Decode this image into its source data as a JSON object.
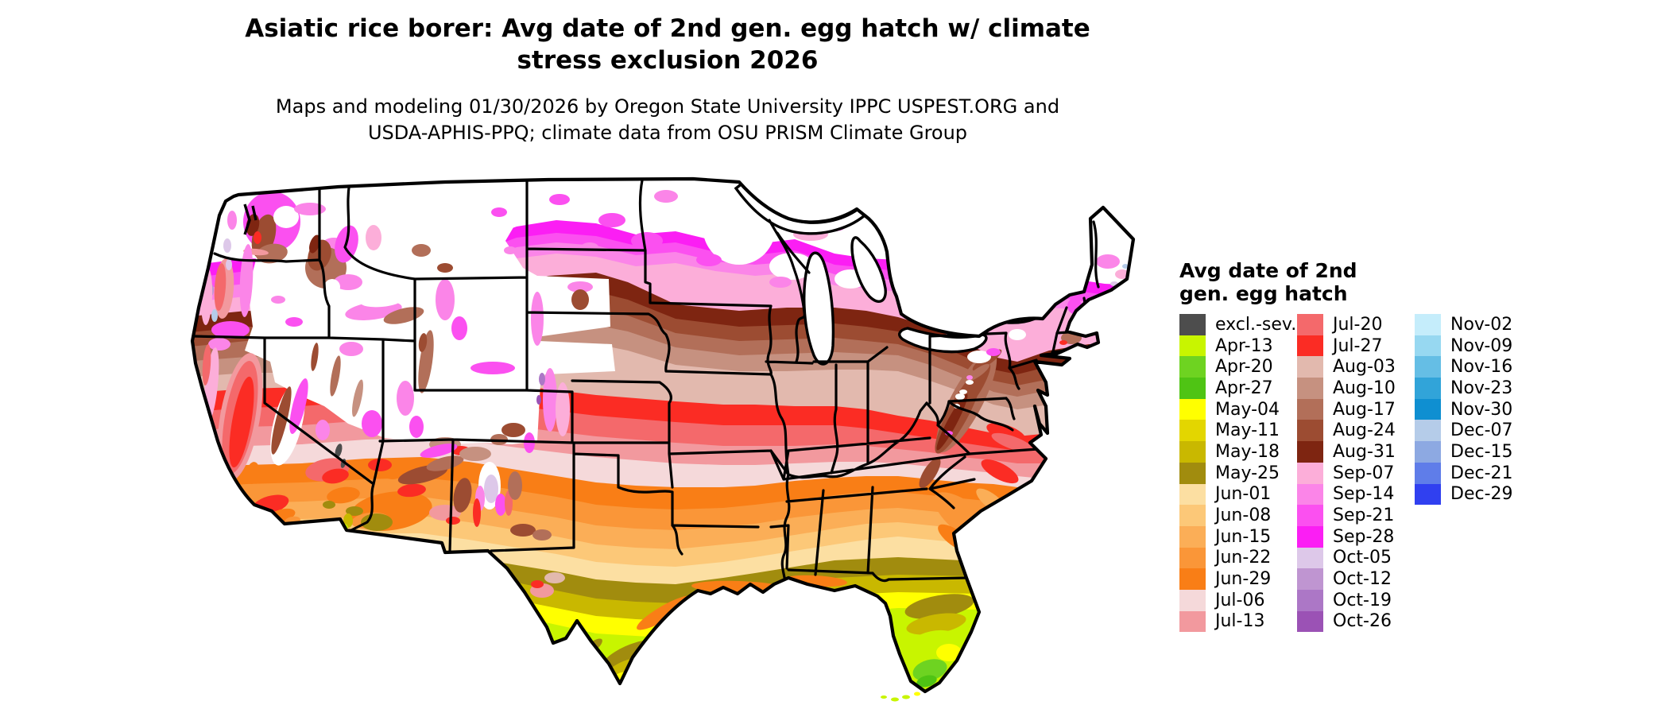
{
  "header": {
    "title_line1": "Asiatic rice borer: Avg date of 2nd gen. egg hatch w/ climate",
    "title_line2": "stress exclusion 2026",
    "subtitle_line1": "Maps and modeling 01/30/2026 by Oregon State University IPPC USPEST.ORG and",
    "subtitle_line2": "USDA-APHIS-PPQ; climate data from OSU PRISM Climate Group"
  },
  "legend": {
    "title_line1": "Avg date of 2nd",
    "title_line2": "gen. egg hatch",
    "columns": [
      {
        "entries": [
          {
            "key": "excl_sev",
            "label": "excl.-sev.",
            "color": "#4d4d4d"
          },
          {
            "key": "apr13",
            "label": "Apr-13",
            "color": "#c8f500"
          },
          {
            "key": "apr20",
            "label": "Apr-20",
            "color": "#6ed321"
          },
          {
            "key": "apr27",
            "label": "Apr-27",
            "color": "#4fc414"
          },
          {
            "key": "may04",
            "label": "May-04",
            "color": "#ffff00"
          },
          {
            "key": "may11",
            "label": "May-11",
            "color": "#e3d600"
          },
          {
            "key": "may18",
            "label": "May-18",
            "color": "#c9b800"
          },
          {
            "key": "may25",
            "label": "May-25",
            "color": "#a18c0e"
          },
          {
            "key": "jun01",
            "label": "Jun-01",
            "color": "#fcdfa2"
          },
          {
            "key": "jun08",
            "label": "Jun-08",
            "color": "#fcc878"
          },
          {
            "key": "jun15",
            "label": "Jun-15",
            "color": "#fbae57"
          },
          {
            "key": "jun22",
            "label": "Jun-22",
            "color": "#fa9638"
          },
          {
            "key": "jun29",
            "label": "Jun-29",
            "color": "#f97e16"
          },
          {
            "key": "jul06",
            "label": "Jul-06",
            "color": "#f5d9da"
          },
          {
            "key": "jul13",
            "label": "Jul-13",
            "color": "#f2999e"
          }
        ]
      },
      {
        "entries": [
          {
            "key": "jul20",
            "label": "Jul-20",
            "color": "#f4696b"
          },
          {
            "key": "jul27",
            "label": "Jul-27",
            "color": "#fb2c24"
          },
          {
            "key": "aug03",
            "label": "Aug-03",
            "color": "#e2b9ae"
          },
          {
            "key": "aug10",
            "label": "Aug-10",
            "color": "#c69180"
          },
          {
            "key": "aug17",
            "label": "Aug-17",
            "color": "#b26f59"
          },
          {
            "key": "aug24",
            "label": "Aug-24",
            "color": "#9c4c32"
          },
          {
            "key": "aug31",
            "label": "Aug-31",
            "color": "#7e2511"
          },
          {
            "key": "sep07",
            "label": "Sep-07",
            "color": "#fcaed9"
          },
          {
            "key": "sep14",
            "label": "Sep-14",
            "color": "#fb85e8"
          },
          {
            "key": "sep21",
            "label": "Sep-21",
            "color": "#fb50f0"
          },
          {
            "key": "sep28",
            "label": "Sep-28",
            "color": "#fb1ef4"
          },
          {
            "key": "oct05",
            "label": "Oct-05",
            "color": "#ddc8e9"
          },
          {
            "key": "oct12",
            "label": "Oct-12",
            "color": "#bf95d1"
          },
          {
            "key": "oct19",
            "label": "Oct-19",
            "color": "#ac77c6"
          },
          {
            "key": "oct26",
            "label": "Oct-26",
            "color": "#9b52b5"
          }
        ]
      },
      {
        "entries": [
          {
            "key": "nov02",
            "label": "Nov-02",
            "color": "#c5edfb"
          },
          {
            "key": "nov09",
            "label": "Nov-09",
            "color": "#97d8f1"
          },
          {
            "key": "nov16",
            "label": "Nov-16",
            "color": "#65bee5"
          },
          {
            "key": "nov23",
            "label": "Nov-23",
            "color": "#31a4d9"
          },
          {
            "key": "nov30",
            "label": "Nov-30",
            "color": "#0f8fd1"
          },
          {
            "key": "dec07",
            "label": "Dec-07",
            "color": "#b5cce9"
          },
          {
            "key": "dec15",
            "label": "Dec-15",
            "color": "#8da9e2"
          },
          {
            "key": "dec21",
            "label": "Dec-21",
            "color": "#5f7de9"
          },
          {
            "key": "dec29",
            "label": "Dec-29",
            "color": "#3040f0"
          }
        ]
      }
    ]
  }
}
